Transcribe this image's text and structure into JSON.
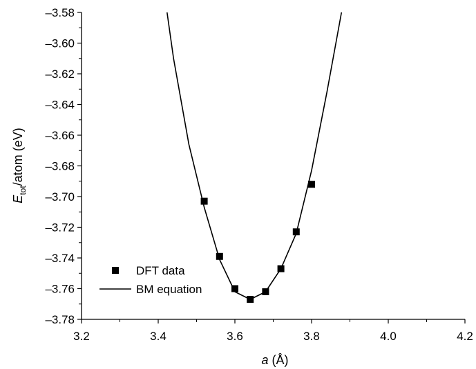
{
  "chart_data": {
    "type": "scatter",
    "title": "",
    "xlabel": {
      "italic": "a",
      "rest": " (Å)"
    },
    "ylabel": {
      "italic": "E",
      "sub": "tot",
      "rest": "/atom (eV)"
    },
    "xlim": [
      3.2,
      4.2
    ],
    "ylim": [
      -3.78,
      -3.58
    ],
    "xticks": [
      "3.2",
      "3.4",
      "3.6",
      "3.8",
      "4.0",
      "4.2"
    ],
    "yticks": [
      "–3.58",
      "–3.60",
      "–3.62",
      "–3.64",
      "–3.66",
      "–3.68",
      "–3.70",
      "–3.72",
      "–3.74",
      "–3.76",
      "–3.78"
    ],
    "legend_position": "bottom-left",
    "series": [
      {
        "name": "DFT data",
        "kind": "markers",
        "color": "#000000",
        "x": [
          3.52,
          3.56,
          3.6,
          3.64,
          3.68,
          3.72,
          3.76,
          3.8
        ],
        "y": [
          -3.703,
          -3.739,
          -3.76,
          -3.767,
          -3.762,
          -3.747,
          -3.723,
          -3.692
        ]
      },
      {
        "name": "BM equation",
        "kind": "line",
        "color": "#000000",
        "x": [
          3.423,
          3.44,
          3.48,
          3.52,
          3.56,
          3.6,
          3.64,
          3.68,
          3.72,
          3.76,
          3.8,
          3.84,
          3.878
        ],
        "y": [
          -3.58,
          -3.61,
          -3.666,
          -3.707,
          -3.741,
          -3.762,
          -3.767,
          -3.762,
          -3.747,
          -3.724,
          -3.683,
          -3.632,
          -3.58
        ]
      }
    ]
  }
}
